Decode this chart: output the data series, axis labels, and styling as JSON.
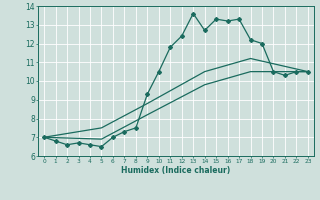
{
  "xlabel": "Humidex (Indice chaleur)",
  "xlim": [
    -0.5,
    23.5
  ],
  "ylim": [
    6,
    14
  ],
  "xticks": [
    0,
    1,
    2,
    3,
    4,
    5,
    6,
    7,
    8,
    9,
    10,
    11,
    12,
    13,
    14,
    15,
    16,
    17,
    18,
    19,
    20,
    21,
    22,
    23
  ],
  "yticks": [
    6,
    7,
    8,
    9,
    10,
    11,
    12,
    13,
    14
  ],
  "bg_color": "#cfe0dc",
  "line_color": "#1a6b5e",
  "line1_x": [
    0,
    1,
    2,
    3,
    4,
    5,
    6,
    7,
    8,
    9,
    10,
    11,
    12,
    13,
    14,
    15,
    16,
    17,
    18,
    19,
    20,
    21,
    22,
    23
  ],
  "line1_y": [
    7.0,
    6.8,
    6.6,
    6.7,
    6.6,
    6.5,
    7.0,
    7.3,
    7.5,
    9.3,
    10.5,
    11.8,
    12.4,
    13.6,
    12.7,
    13.3,
    13.2,
    13.3,
    12.2,
    12.0,
    10.5,
    10.3,
    10.5,
    10.5
  ],
  "line2_x": [
    0,
    23
  ],
  "line2_y": [
    7.0,
    10.5
  ],
  "line3_x": [
    0,
    23
  ],
  "line3_y": [
    7.0,
    10.5
  ],
  "line2_waypoints_x": [
    0,
    5,
    9,
    14,
    18,
    23
  ],
  "line2_waypoints_y": [
    7.0,
    6.9,
    8.2,
    9.8,
    10.5,
    10.5
  ],
  "line3_waypoints_x": [
    0,
    5,
    9,
    14,
    18,
    23
  ],
  "line3_waypoints_y": [
    7.0,
    7.5,
    8.8,
    10.5,
    11.2,
    10.5
  ]
}
